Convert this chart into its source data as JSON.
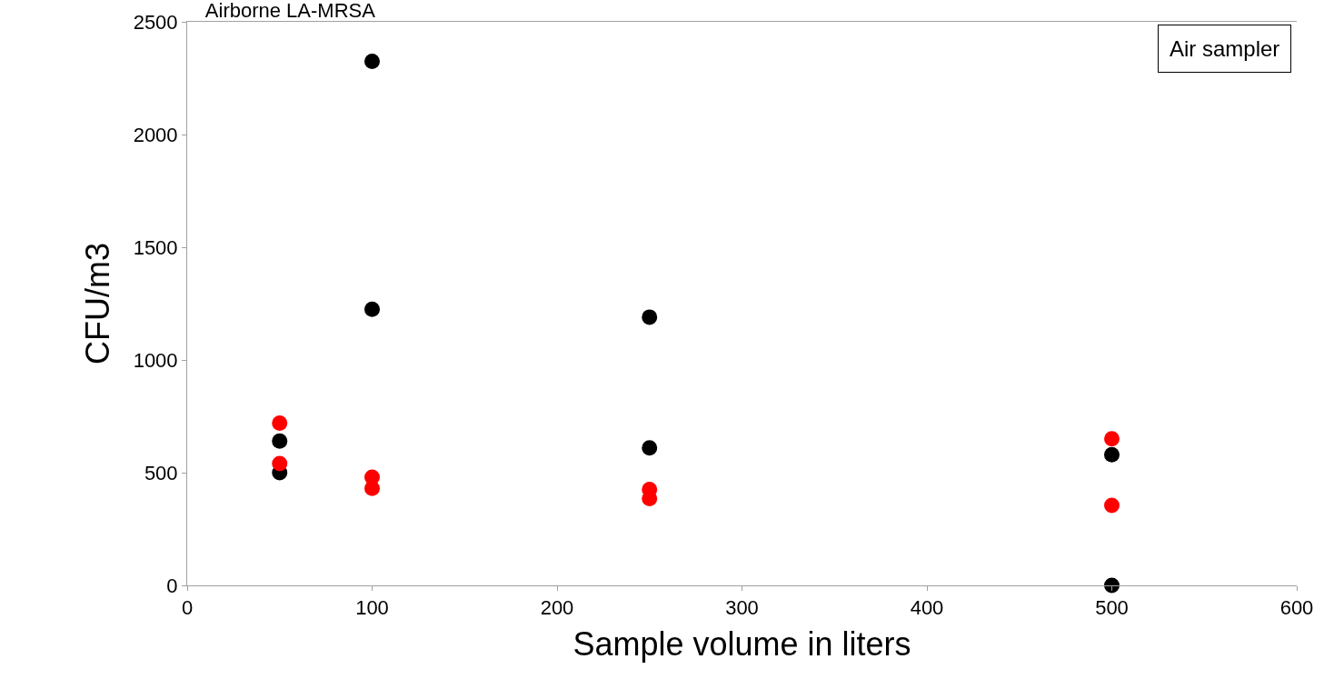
{
  "chart_data": {
    "type": "scatter",
    "title": "Airborne LA-MRSA",
    "xlabel": "Sample volume in liters",
    "ylabel": "CFU/m3",
    "annotations": [
      "Air sampler"
    ],
    "series": [
      {
        "color": "#000000",
        "x": [
          50,
          50,
          100,
          100,
          250,
          250,
          500,
          500
        ],
        "values": [
          640,
          500,
          2325,
          1225,
          1190,
          610,
          580,
          0
        ]
      },
      {
        "color": "#ff0000",
        "x": [
          50,
          50,
          100,
          100,
          250,
          250,
          500,
          500
        ],
        "values": [
          720,
          540,
          480,
          430,
          425,
          385,
          650,
          355
        ]
      }
    ],
    "xlim": [
      0,
      600
    ],
    "xticks": [
      0,
      100,
      200,
      300,
      400,
      500,
      600
    ],
    "ylim": [
      0,
      2500
    ],
    "yticks": [
      0,
      500,
      1000,
      1500,
      2000,
      2500
    ],
    "marker": "circle"
  }
}
